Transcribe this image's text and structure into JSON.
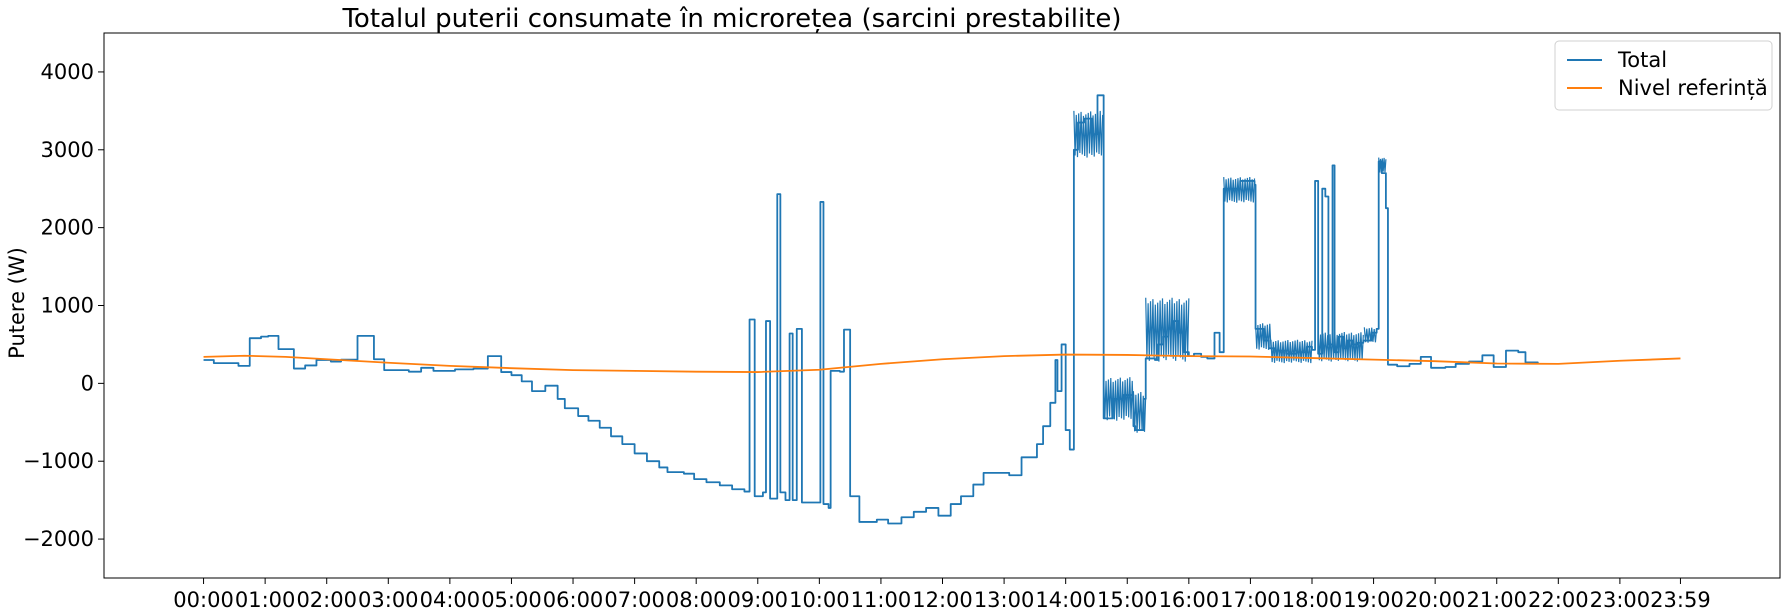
{
  "chart_data": {
    "type": "line",
    "title": "Totalul puterii consumate în microrețea (sarcini prestabilite)",
    "xlabel": "",
    "ylabel": "Putere (W)",
    "ylim": [
      -2500,
      4500
    ],
    "xlim_minutes": [
      -97,
      1536
    ],
    "y_ticks": [
      -2000,
      -1000,
      0,
      1000,
      2000,
      3000,
      4000
    ],
    "x_ticks": [
      {
        "label": "00:00",
        "minute": 0
      },
      {
        "label": "01:00",
        "minute": 60
      },
      {
        "label": "02:00",
        "minute": 120
      },
      {
        "label": "03:00",
        "minute": 180
      },
      {
        "label": "04:00",
        "minute": 240
      },
      {
        "label": "05:00",
        "minute": 300
      },
      {
        "label": "06:00",
        "minute": 360
      },
      {
        "label": "07:00",
        "minute": 420
      },
      {
        "label": "08:00",
        "minute": 480
      },
      {
        "label": "09:00",
        "minute": 540
      },
      {
        "label": "10:00",
        "minute": 600
      },
      {
        "label": "11:00",
        "minute": 660
      },
      {
        "label": "12:00",
        "minute": 720
      },
      {
        "label": "13:00",
        "minute": 780
      },
      {
        "label": "14:00",
        "minute": 840
      },
      {
        "label": "15:00",
        "minute": 900
      },
      {
        "label": "16:00",
        "minute": 960
      },
      {
        "label": "17:00",
        "minute": 1020
      },
      {
        "label": "18:00",
        "minute": 1080
      },
      {
        "label": "19:00",
        "minute": 1140
      },
      {
        "label": "20:00",
        "minute": 1200
      },
      {
        "label": "21:00",
        "minute": 1260
      },
      {
        "label": "22:00",
        "minute": 1320
      },
      {
        "label": "23:00",
        "minute": 1380
      },
      {
        "label": "23:59",
        "minute": 1439
      }
    ],
    "grid": false,
    "legend_position": "top-right",
    "series": [
      {
        "name": "Total",
        "color": "#1f77b4",
        "style": "step",
        "points": [
          [
            0,
            300
          ],
          [
            10,
            260
          ],
          [
            34,
            225
          ],
          [
            45,
            580
          ],
          [
            56,
            600
          ],
          [
            63,
            610
          ],
          [
            73,
            440
          ],
          [
            88,
            190
          ],
          [
            99,
            230
          ],
          [
            110,
            300
          ],
          [
            124,
            280
          ],
          [
            134,
            305
          ],
          [
            150,
            610
          ],
          [
            166,
            310
          ],
          [
            176,
            170
          ],
          [
            200,
            150
          ],
          [
            212,
            200
          ],
          [
            224,
            160
          ],
          [
            245,
            180
          ],
          [
            263,
            190
          ],
          [
            277,
            350
          ],
          [
            290,
            145
          ],
          [
            300,
            105
          ],
          [
            310,
            25
          ],
          [
            320,
            -100
          ],
          [
            333,
            -30
          ],
          [
            345,
            -200
          ],
          [
            352,
            -320
          ],
          [
            365,
            -420
          ],
          [
            375,
            -480
          ],
          [
            386,
            -570
          ],
          [
            397,
            -680
          ],
          [
            408,
            -780
          ],
          [
            420,
            -900
          ],
          [
            432,
            -1000
          ],
          [
            444,
            -1080
          ],
          [
            452,
            -1140
          ],
          [
            468,
            -1160
          ],
          [
            478,
            -1230
          ],
          [
            490,
            -1270
          ],
          [
            503,
            -1310
          ],
          [
            515,
            -1360
          ],
          [
            527,
            -1390
          ],
          [
            532,
            820
          ],
          [
            537,
            -1450
          ],
          [
            545,
            -1400
          ],
          [
            548,
            800
          ],
          [
            552,
            -1480
          ],
          [
            559,
            2430
          ],
          [
            562,
            -1400
          ],
          [
            567,
            -1500
          ],
          [
            571,
            640
          ],
          [
            574,
            -1500
          ],
          [
            578,
            700
          ],
          [
            583,
            -1530
          ],
          [
            601,
            2330
          ],
          [
            604,
            -1550
          ],
          [
            609,
            -1600
          ],
          [
            611,
            160
          ],
          [
            620,
            150
          ],
          [
            624,
            690
          ],
          [
            630,
            -1450
          ],
          [
            639,
            -1780
          ],
          [
            656,
            -1750
          ],
          [
            667,
            -1800
          ],
          [
            680,
            -1720
          ],
          [
            692,
            -1650
          ],
          [
            704,
            -1600
          ],
          [
            716,
            -1700
          ],
          [
            728,
            -1550
          ],
          [
            738,
            -1450
          ],
          [
            750,
            -1300
          ],
          [
            760,
            -1150
          ],
          [
            785,
            -1180
          ],
          [
            797,
            -950
          ],
          [
            812,
            -780
          ],
          [
            818,
            -550
          ],
          [
            825,
            -250
          ],
          [
            830,
            300
          ],
          [
            832,
            -100
          ],
          [
            836,
            500
          ],
          [
            840,
            -600
          ],
          [
            844,
            -850
          ],
          [
            848,
            3000
          ],
          [
            852,
            3350
          ],
          [
            858,
            3400
          ],
          [
            866,
            3200
          ],
          [
            871,
            3700
          ],
          [
            876,
            3700
          ],
          [
            877,
            -450
          ],
          [
            886,
            -200
          ],
          [
            896,
            -150
          ],
          [
            906,
            -550
          ],
          [
            908,
            -600
          ],
          [
            916,
            -200
          ],
          [
            918,
            320
          ],
          [
            927,
            300
          ],
          [
            930,
            500
          ],
          [
            935,
            600
          ],
          [
            940,
            700
          ],
          [
            945,
            800
          ],
          [
            950,
            650
          ],
          [
            955,
            400
          ],
          [
            960,
            350
          ],
          [
            965,
            380
          ],
          [
            972,
            340
          ],
          [
            978,
            320
          ],
          [
            985,
            650
          ],
          [
            990,
            400
          ],
          [
            994,
            2500
          ],
          [
            1010,
            2600
          ],
          [
            1024,
            2550
          ],
          [
            1025,
            700
          ],
          [
            1033,
            550
          ],
          [
            1038,
            450
          ],
          [
            1044,
            420
          ],
          [
            1055,
            380
          ],
          [
            1065,
            400
          ],
          [
            1075,
            470
          ],
          [
            1080,
            430
          ],
          [
            1083,
            2600
          ],
          [
            1086,
            380
          ],
          [
            1090,
            2500
          ],
          [
            1093,
            2400
          ],
          [
            1096,
            500
          ],
          [
            1100,
            2800
          ],
          [
            1102,
            400
          ],
          [
            1106,
            600
          ],
          [
            1110,
            450
          ],
          [
            1115,
            550
          ],
          [
            1120,
            500
          ],
          [
            1124,
            520
          ],
          [
            1130,
            550
          ],
          [
            1138,
            650
          ],
          [
            1143,
            700
          ],
          [
            1145,
            2850
          ],
          [
            1148,
            2700
          ],
          [
            1152,
            2250
          ],
          [
            1154,
            240
          ],
          [
            1163,
            220
          ],
          [
            1175,
            250
          ],
          [
            1186,
            340
          ],
          [
            1196,
            200
          ],
          [
            1210,
            210
          ],
          [
            1220,
            250
          ],
          [
            1233,
            280
          ],
          [
            1246,
            360
          ],
          [
            1257,
            210
          ],
          [
            1269,
            420
          ],
          [
            1281,
            400
          ],
          [
            1288,
            270
          ],
          [
            1300,
            260
          ]
        ],
        "noisy_bands": [
          [
            848,
            876,
            2900,
            3500
          ],
          [
            877,
            906,
            -480,
            80
          ],
          [
            906,
            918,
            -640,
            -100
          ],
          [
            918,
            960,
            280,
            1100
          ],
          [
            994,
            1024,
            2320,
            2650
          ],
          [
            1025,
            1040,
            430,
            780
          ],
          [
            1040,
            1080,
            260,
            560
          ],
          [
            1086,
            1130,
            280,
            660
          ],
          [
            1131,
            1143,
            520,
            720
          ],
          [
            1145,
            1152,
            2700,
            2900
          ]
        ]
      },
      {
        "name": "Nivel referință",
        "color": "#ff7f0e",
        "style": "line",
        "points": [
          [
            0,
            340
          ],
          [
            40,
            355
          ],
          [
            80,
            340
          ],
          [
            120,
            310
          ],
          [
            180,
            265
          ],
          [
            240,
            225
          ],
          [
            300,
            195
          ],
          [
            360,
            170
          ],
          [
            420,
            160
          ],
          [
            480,
            150
          ],
          [
            540,
            145
          ],
          [
            600,
            175
          ],
          [
            660,
            250
          ],
          [
            720,
            310
          ],
          [
            780,
            350
          ],
          [
            840,
            370
          ],
          [
            900,
            365
          ],
          [
            960,
            350
          ],
          [
            1020,
            345
          ],
          [
            1080,
            325
          ],
          [
            1140,
            305
          ],
          [
            1200,
            285
          ],
          [
            1260,
            255
          ],
          [
            1320,
            250
          ],
          [
            1380,
            290
          ],
          [
            1439,
            320
          ]
        ]
      }
    ]
  }
}
